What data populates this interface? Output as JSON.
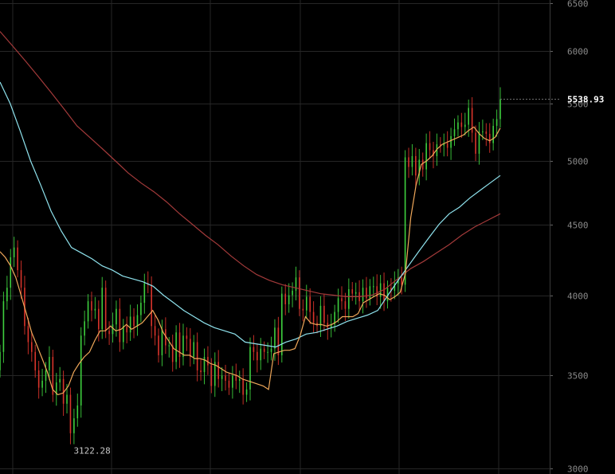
{
  "chart_data": {
    "type": "bar",
    "title": "",
    "xlabel": "",
    "ylabel": "",
    "y_scale": "log",
    "ylim": [
      2960,
      6550
    ],
    "y_ticks": [
      3000,
      3500,
      4000,
      4500,
      5000,
      5500,
      6000,
      6500
    ],
    "y_tick_labels": [
      "3000",
      "3500",
      "4000",
      "4500",
      "5000",
      "5500",
      "6000",
      "6500"
    ],
    "grid": true,
    "last_price": 5538.93,
    "last_price_label": "5538.93",
    "low_annotation": {
      "value": 3122.28,
      "label": "3122.28"
    },
    "colors": {
      "up": "#3ecf3e",
      "down": "#d9342b",
      "ma_fast": "#f0a85a",
      "ma_mid": "#8fe3ee",
      "ma_slow": "#a33a3a",
      "grid": "#262626",
      "axis": "#3a3a3a"
    },
    "close": [
      3640,
      3960,
      4050,
      4260,
      4330,
      4170,
      4050,
      3800,
      3700,
      3640,
      3530,
      3430,
      3470,
      3530,
      3610,
      3390,
      3460,
      3480,
      3340,
      3390,
      3180,
      3260,
      3330,
      3740,
      3830,
      3960,
      3900,
      3910,
      3780,
      4050,
      3770,
      3750,
      3810,
      3910,
      3700,
      3800,
      3760,
      3860,
      3800,
      3870,
      3950,
      4080,
      4070,
      3800,
      3740,
      3620,
      3780,
      3680,
      3680,
      3580,
      3760,
      3610,
      3740,
      3720,
      3610,
      3700,
      3530,
      3520,
      3610,
      3560,
      3440,
      3580,
      3480,
      3500,
      3470,
      3430,
      3500,
      3470,
      3480,
      3390,
      3420,
      3670,
      3640,
      3590,
      3660,
      3640,
      3640,
      3660,
      3790,
      3620,
      4010,
      3940,
      4000,
      4030,
      4120,
      3910,
      3900,
      3990,
      3890,
      3820,
      3800,
      3930,
      3820,
      3790,
      3810,
      3890,
      3980,
      3960,
      3910,
      4040,
      4010,
      4020,
      3960,
      4050,
      3980,
      4060,
      4060,
      3990,
      4080,
      3960,
      4050,
      4030,
      4080,
      4120,
      4070,
      5030,
      4950,
      5040,
      4880,
      5010,
      4930,
      5150,
      5090,
      5040,
      5140,
      5130,
      5150,
      5110,
      5210,
      5270,
      5330,
      5290,
      5310,
      5460,
      5240,
      5060,
      5250,
      5250,
      5230,
      5150,
      5300,
      5360,
      5540
    ],
    "ma_fast": [
      4300,
      4260,
      4200,
      4120,
      4000,
      3880,
      3760,
      3680,
      3600,
      3520,
      3420,
      3390,
      3400,
      3440,
      3520,
      3570,
      3610,
      3640,
      3710,
      3770,
      3770,
      3800,
      3770,
      3780,
      3810,
      3780,
      3800,
      3820,
      3860,
      3900,
      3840,
      3760,
      3710,
      3660,
      3640,
      3620,
      3620,
      3600,
      3600,
      3590,
      3570,
      3560,
      3540,
      3520,
      3510,
      3500,
      3480,
      3470,
      3460,
      3450,
      3440,
      3420,
      3630,
      3640,
      3650,
      3650,
      3660,
      3740,
      3860,
      3820,
      3810,
      3810,
      3800,
      3810,
      3830,
      3860,
      3860,
      3860,
      3880,
      3950,
      3970,
      3990,
      4010,
      4000,
      3970,
      3990,
      4020,
      4150,
      4550,
      4800,
      4970,
      5000,
      5040,
      5100,
      5140,
      5160,
      5180,
      5200,
      5220,
      5260,
      5290,
      5230,
      5190,
      5170,
      5200,
      5280
    ],
    "ma_mid": [
      5700,
      5500,
      5250,
      5000,
      4800,
      4600,
      4450,
      4330,
      4290,
      4250,
      4200,
      4170,
      4130,
      4110,
      4090,
      4060,
      4000,
      3950,
      3900,
      3860,
      3820,
      3790,
      3770,
      3750,
      3700,
      3690,
      3680,
      3670,
      3700,
      3720,
      3750,
      3760,
      3780,
      3800,
      3830,
      3850,
      3870,
      3900,
      4000,
      4100,
      4200,
      4300,
      4400,
      4500,
      4580,
      4630,
      4700,
      4760,
      4820,
      4880
    ],
    "ma_slow": [
      6200,
      6050,
      5900,
      5750,
      5600,
      5450,
      5300,
      5200,
      5100,
      5000,
      4900,
      4820,
      4750,
      4670,
      4580,
      4500,
      4420,
      4350,
      4270,
      4200,
      4140,
      4100,
      4070,
      4050,
      4030,
      4010,
      4000,
      3990,
      3990,
      4000,
      4040,
      4110,
      4180,
      4230,
      4290,
      4350,
      4420,
      4480,
      4530,
      4580
    ]
  }
}
